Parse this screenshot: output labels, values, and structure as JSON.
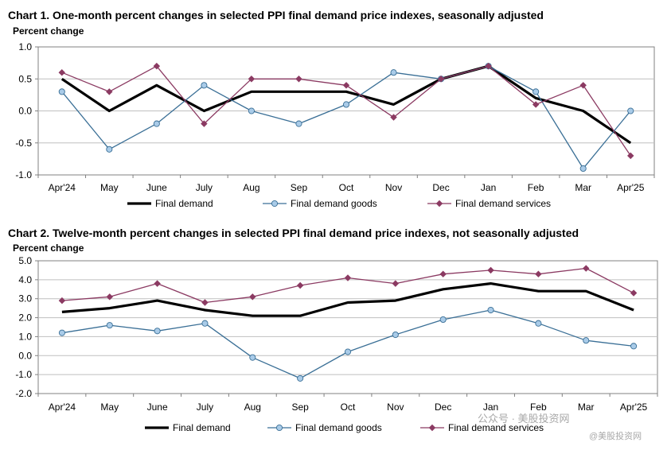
{
  "colors": {
    "final_demand": "#000000",
    "final_demand_goods": "#3a6f96",
    "final_demand_goods_marker": "#a9cbe8",
    "final_demand_services": "#8b3a62",
    "axis": "#808080",
    "grid": "#bfbfbf"
  },
  "watermark": {
    "line1": "公众号 · 美股投资网",
    "line2": "@美股投资网"
  },
  "chart_data": [
    {
      "type": "line",
      "title": "Chart 1. One-month percent changes in selected PPI final demand price indexes, seasonally adjusted",
      "ylabel": "Percent change",
      "xlabel": "",
      "categories": [
        "Apr'24",
        "May",
        "June",
        "July",
        "Aug",
        "Sep",
        "Oct",
        "Nov",
        "Dec",
        "Jan",
        "Feb",
        "Mar",
        "Apr'25"
      ],
      "ylim": [
        -1.0,
        1.0
      ],
      "yticks": [
        "1.0",
        "0.5",
        "0.0",
        "-0.5",
        "-1.0"
      ],
      "ytick_values": [
        1.0,
        0.5,
        0.0,
        -0.5,
        -1.0
      ],
      "grid": true,
      "legend_position": "bottom",
      "series": [
        {
          "name": "Final demand",
          "values": [
            0.5,
            0.0,
            0.4,
            0.0,
            0.3,
            0.3,
            0.3,
            0.1,
            0.5,
            0.7,
            0.2,
            0.0,
            -0.5
          ]
        },
        {
          "name": "Final demand goods",
          "values": [
            0.3,
            -0.6,
            -0.2,
            0.4,
            0.0,
            -0.2,
            0.1,
            0.6,
            0.5,
            0.7,
            0.3,
            -0.9,
            0.0
          ]
        },
        {
          "name": "Final demand services",
          "values": [
            0.6,
            0.3,
            0.7,
            -0.2,
            0.5,
            0.5,
            0.4,
            -0.1,
            0.5,
            0.7,
            0.1,
            0.4,
            -0.7
          ]
        }
      ]
    },
    {
      "type": "line",
      "title": "Chart 2. Twelve-month percent changes in selected PPI final demand price indexes, not seasonally adjusted",
      "ylabel": "Percent change",
      "xlabel": "",
      "categories": [
        "Apr'24",
        "May",
        "June",
        "July",
        "Aug",
        "Sep",
        "Oct",
        "Nov",
        "Dec",
        "Jan",
        "Feb",
        "Mar",
        "Apr'25"
      ],
      "ylim": [
        -2.0,
        5.0
      ],
      "yticks": [
        "5.0",
        "4.0",
        "3.0",
        "2.0",
        "1.0",
        "0.0",
        "-1.0",
        "-2.0"
      ],
      "ytick_values": [
        5.0,
        4.0,
        3.0,
        2.0,
        1.0,
        0.0,
        -1.0,
        -2.0
      ],
      "grid": true,
      "legend_position": "bottom",
      "series": [
        {
          "name": "Final demand",
          "values": [
            2.3,
            2.5,
            2.9,
            2.4,
            2.1,
            2.1,
            2.8,
            2.9,
            3.5,
            3.8,
            3.4,
            3.4,
            2.4
          ]
        },
        {
          "name": "Final demand goods",
          "values": [
            1.2,
            1.6,
            1.3,
            1.7,
            -0.1,
            -1.2,
            0.2,
            1.1,
            1.9,
            2.4,
            1.7,
            0.8,
            0.5
          ]
        },
        {
          "name": "Final demand services",
          "values": [
            2.9,
            3.1,
            3.8,
            2.8,
            3.1,
            3.7,
            4.1,
            3.8,
            4.3,
            4.5,
            4.3,
            4.6,
            3.3
          ]
        }
      ]
    }
  ]
}
